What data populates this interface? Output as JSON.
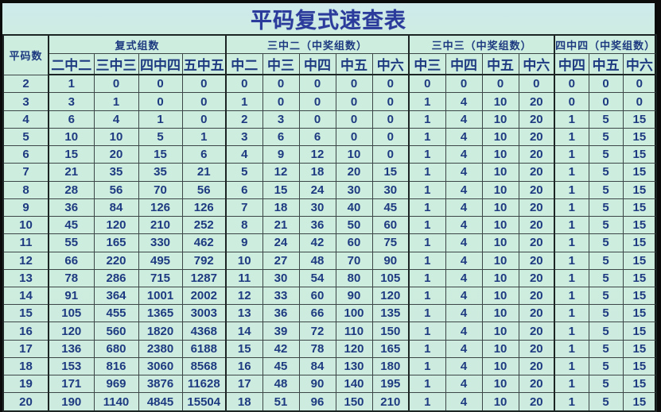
{
  "page_title": "平码复式速查表",
  "colors": {
    "outer_frame": "#0b0b0b",
    "background": "#cdecdf",
    "title_text": "#2a3b9c",
    "cell_text": "#1e3a80",
    "grid_line": "#3c4647",
    "section_line": "#1c2424"
  },
  "chart_data": {
    "type": "table",
    "title": "平码复式速查表",
    "corner_header": "平码数",
    "column_groups": [
      {
        "label": "复式组数",
        "cols": [
          "二中二",
          "三中三",
          "四中四",
          "五中五"
        ]
      },
      {
        "label": "三中二（中奖组数）",
        "cols": [
          "中二",
          "中三",
          "中四",
          "中五",
          "中六"
        ]
      },
      {
        "label": "三中三（中奖组数）",
        "cols": [
          "中三",
          "中四",
          "中五",
          "中六"
        ]
      },
      {
        "label": "四中四（中奖组数）",
        "cols": [
          "中四",
          "中五",
          "中六"
        ]
      }
    ],
    "rows": [
      [
        2,
        1,
        0,
        0,
        0,
        0,
        0,
        0,
        0,
        0,
        0,
        0,
        0,
        0,
        0,
        0,
        0
      ],
      [
        3,
        3,
        1,
        0,
        0,
        1,
        0,
        0,
        0,
        0,
        1,
        4,
        10,
        20,
        0,
        0,
        0
      ],
      [
        4,
        6,
        4,
        1,
        0,
        2,
        3,
        0,
        0,
        0,
        1,
        4,
        10,
        20,
        1,
        5,
        15
      ],
      [
        5,
        10,
        10,
        5,
        1,
        3,
        6,
        6,
        0,
        0,
        1,
        4,
        10,
        20,
        1,
        5,
        15
      ],
      [
        6,
        15,
        20,
        15,
        6,
        4,
        9,
        12,
        10,
        0,
        1,
        4,
        10,
        20,
        1,
        5,
        15
      ],
      [
        7,
        21,
        35,
        35,
        21,
        5,
        12,
        18,
        20,
        15,
        1,
        4,
        10,
        20,
        1,
        5,
        15
      ],
      [
        8,
        28,
        56,
        70,
        56,
        6,
        15,
        24,
        30,
        30,
        1,
        4,
        10,
        20,
        1,
        5,
        15
      ],
      [
        9,
        36,
        84,
        126,
        126,
        7,
        18,
        30,
        40,
        45,
        1,
        4,
        10,
        20,
        1,
        5,
        15
      ],
      [
        10,
        45,
        120,
        210,
        252,
        8,
        21,
        36,
        50,
        60,
        1,
        4,
        10,
        20,
        1,
        5,
        15
      ],
      [
        11,
        55,
        165,
        330,
        462,
        9,
        24,
        42,
        60,
        75,
        1,
        4,
        10,
        20,
        1,
        5,
        15
      ],
      [
        12,
        66,
        220,
        495,
        792,
        10,
        27,
        48,
        70,
        90,
        1,
        4,
        10,
        20,
        1,
        5,
        15
      ],
      [
        13,
        78,
        286,
        715,
        1287,
        11,
        30,
        54,
        80,
        105,
        1,
        4,
        10,
        20,
        1,
        5,
        15
      ],
      [
        14,
        91,
        364,
        1001,
        2002,
        12,
        33,
        60,
        90,
        120,
        1,
        4,
        10,
        20,
        1,
        5,
        15
      ],
      [
        15,
        105,
        455,
        1365,
        3003,
        13,
        36,
        66,
        100,
        135,
        1,
        4,
        10,
        20,
        1,
        5,
        15
      ],
      [
        16,
        120,
        560,
        1820,
        4368,
        14,
        39,
        72,
        110,
        150,
        1,
        4,
        10,
        20,
        1,
        5,
        15
      ],
      [
        17,
        136,
        680,
        2380,
        6188,
        15,
        42,
        78,
        120,
        165,
        1,
        4,
        10,
        20,
        1,
        5,
        15
      ],
      [
        18,
        153,
        816,
        3060,
        8568,
        16,
        45,
        84,
        130,
        180,
        1,
        4,
        10,
        20,
        1,
        5,
        15
      ],
      [
        19,
        171,
        969,
        3876,
        11628,
        17,
        48,
        90,
        140,
        195,
        1,
        4,
        10,
        20,
        1,
        5,
        15
      ],
      [
        20,
        190,
        1140,
        4845,
        15504,
        18,
        51,
        96,
        150,
        210,
        1,
        4,
        10,
        20,
        1,
        5,
        15
      ]
    ]
  }
}
